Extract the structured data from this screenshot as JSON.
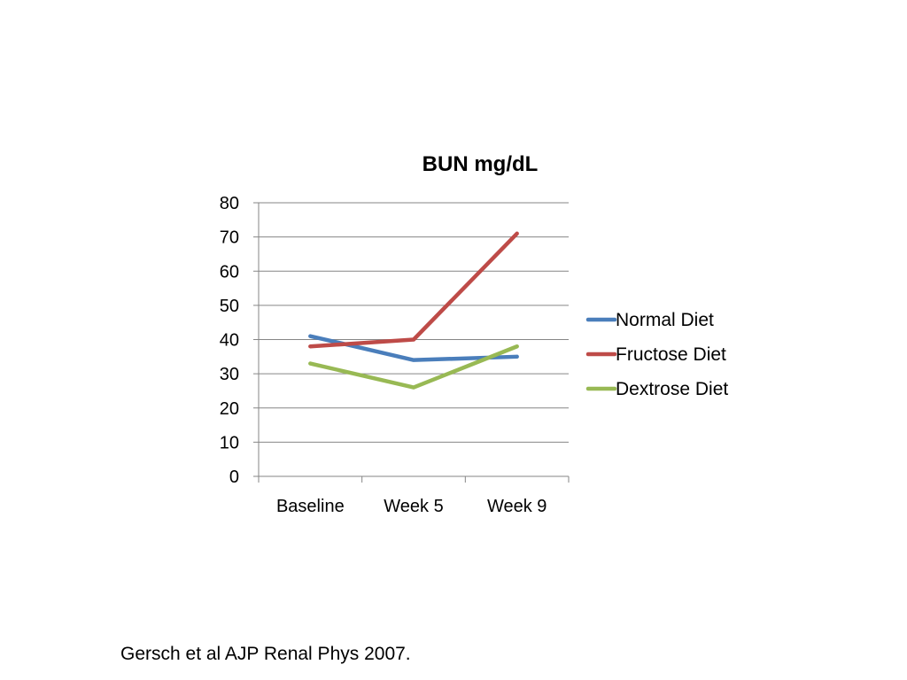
{
  "chart_data": {
    "type": "line",
    "title": "BUN mg/dL",
    "xlabel": "",
    "ylabel": "",
    "categories": [
      "Baseline",
      "Week 5",
      "Week 9"
    ],
    "ylim": [
      0,
      80
    ],
    "yticks": [
      0,
      10,
      20,
      30,
      40,
      50,
      60,
      70,
      80
    ],
    "grid": true,
    "legend_position": "right",
    "series": [
      {
        "name": "Normal Diet",
        "color": "#4a7ebb",
        "values": [
          41,
          34,
          35
        ]
      },
      {
        "name": "Fructose Diet",
        "color": "#be4b48",
        "values": [
          38,
          40,
          71
        ]
      },
      {
        "name": "Dextrose Diet",
        "color": "#98b954",
        "values": [
          33,
          26,
          38
        ]
      }
    ]
  },
  "citation": "Gersch et al AJP Renal Phys 2007."
}
